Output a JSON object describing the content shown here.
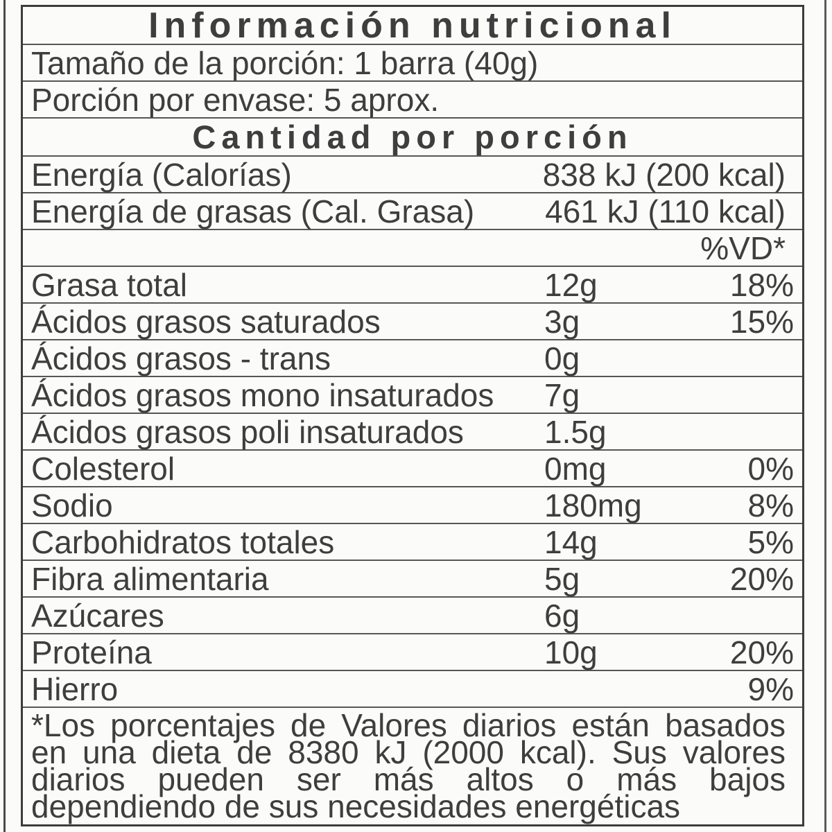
{
  "label": {
    "title": "Información nutricional",
    "serving_size": "Tamaño de la porción: 1 barra (40g)",
    "servings_per_container": "Porción por envase: 5 aprox.",
    "amount_header": "Cantidad por porción",
    "energy_rows": [
      {
        "label": "Energía (Calorías)",
        "value": "838 kJ (200 kcal)"
      },
      {
        "label": "Energía de grasas (Cal. Grasa)",
        "value": "461 kJ (110 kcal)"
      }
    ],
    "daily_value_header": "%VD*",
    "nutrients": [
      {
        "name": "Grasa total",
        "amount": "12g",
        "dv": "18%"
      },
      {
        "name": "Ácidos grasos saturados",
        "amount": "3g",
        "dv": "15%"
      },
      {
        "name": "Ácidos grasos - trans",
        "amount": "0g",
        "dv": ""
      },
      {
        "name": "Ácidos grasos mono insaturados",
        "amount": "7g",
        "dv": ""
      },
      {
        "name": "Ácidos grasos poli insaturados",
        "amount": "1.5g",
        "dv": ""
      },
      {
        "name": "Colesterol",
        "amount": "0mg",
        "dv": "0%"
      },
      {
        "name": "Sodio",
        "amount": "180mg",
        "dv": "8%"
      },
      {
        "name": "Carbohidratos totales",
        "amount": "14g",
        "dv": "5%"
      },
      {
        "name": "Fibra alimentaria",
        "amount": "5g",
        "dv": "20%"
      },
      {
        "name": "Azúcares",
        "amount": "6g",
        "dv": ""
      },
      {
        "name": "Proteína",
        "amount": "10g",
        "dv": "20%"
      },
      {
        "name": "Hierro",
        "amount": "",
        "dv": "9%"
      }
    ],
    "footnote_lines": [
      "*Los porcentajes de Valores diarios están basados",
      "en una dieta de 8380 kJ (2000 kcal). Sus valores",
      "diarios pueden ser más altos o más bajos",
      "dependiendo de sus necesidades energéticas"
    ]
  },
  "colors": {
    "text": "#3e3e3e",
    "rule": "#565656",
    "outer_border": "#3c3c3c",
    "background": "#fbfbf9"
  }
}
